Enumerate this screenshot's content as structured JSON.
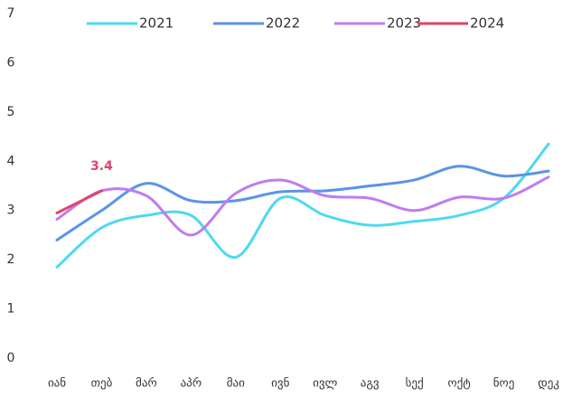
{
  "chart_data": {
    "type": "line",
    "categories": [
      "იან",
      "თებ",
      "მარ",
      "აპრ",
      "მაი",
      "ივნ",
      "ივლ",
      "აგვ",
      "სექ",
      "ოქტ",
      "ნოე",
      "დეკ"
    ],
    "series": [
      {
        "name": "2021",
        "color": "#4dd9f0",
        "values": [
          1.85,
          2.65,
          2.9,
          2.9,
          2.05,
          3.25,
          2.9,
          2.7,
          2.78,
          2.9,
          3.25,
          4.35
        ]
      },
      {
        "name": "2022",
        "color": "#5b93e8",
        "values": [
          2.4,
          3.0,
          3.55,
          3.2,
          3.2,
          3.38,
          3.4,
          3.5,
          3.62,
          3.9,
          3.7,
          3.8
        ]
      },
      {
        "name": "2023",
        "color": "#c07cf0",
        "values": [
          2.82,
          3.4,
          3.3,
          2.5,
          3.35,
          3.62,
          3.3,
          3.25,
          3.0,
          3.27,
          3.25,
          3.68
        ]
      },
      {
        "name": "2024",
        "color": "#e0446a",
        "values": [
          2.95,
          3.4,
          null,
          null,
          null,
          null,
          null,
          null,
          null,
          null,
          null,
          null
        ]
      }
    ],
    "ylim": [
      0,
      7
    ],
    "yticks": [
      0,
      1,
      2,
      3,
      4,
      5,
      6,
      7
    ],
    "grid": false,
    "legend": "top"
  }
}
